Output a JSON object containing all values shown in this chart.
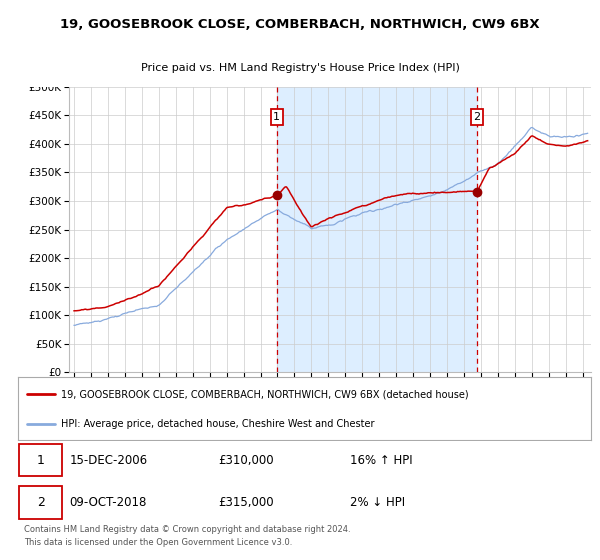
{
  "title": "19, GOOSEBROOK CLOSE, COMBERBACH, NORTHWICH, CW9 6BX",
  "subtitle": "Price paid vs. HM Land Registry's House Price Index (HPI)",
  "legend_line1": "19, GOOSEBROOK CLOSE, COMBERBACH, NORTHWICH, CW9 6BX (detached house)",
  "legend_line2": "HPI: Average price, detached house, Cheshire West and Chester",
  "annotation1_date": "15-DEC-2006",
  "annotation1_price": "£310,000",
  "annotation1_hpi": "16% ↑ HPI",
  "annotation2_date": "09-OCT-2018",
  "annotation2_price": "£315,000",
  "annotation2_hpi": "2% ↓ HPI",
  "footnote": "Contains HM Land Registry data © Crown copyright and database right 2024.\nThis data is licensed under the Open Government Licence v3.0.",
  "sale1_x": 2006.96,
  "sale1_y": 310000,
  "sale2_x": 2018.77,
  "sale2_y": 315000,
  "shade_color": "#ddeeff",
  "hpi_line_color": "#88aadd",
  "price_line_color": "#cc0000",
  "vline_color": "#cc0000",
  "dot_color": "#990000",
  "grid_color": "#cccccc",
  "background_color": "#ffffff",
  "ylim": [
    0,
    500000
  ],
  "xlim": [
    1994.7,
    2025.5
  ],
  "yticks": [
    0,
    50000,
    100000,
    150000,
    200000,
    250000,
    300000,
    350000,
    400000,
    450000,
    500000
  ],
  "xticks": [
    1995,
    1996,
    1997,
    1998,
    1999,
    2000,
    2001,
    2002,
    2003,
    2004,
    2005,
    2006,
    2007,
    2008,
    2009,
    2010,
    2011,
    2012,
    2013,
    2014,
    2015,
    2016,
    2017,
    2018,
    2019,
    2020,
    2021,
    2022,
    2023,
    2024,
    2025
  ]
}
